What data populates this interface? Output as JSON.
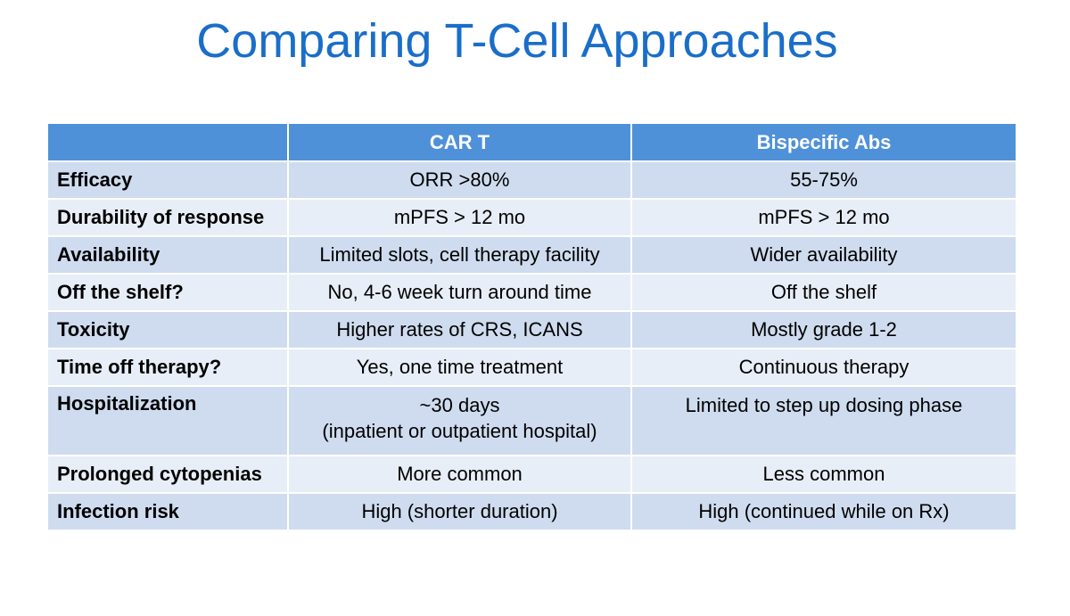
{
  "title": "Comparing T-Cell Approaches",
  "table": {
    "headers": [
      "",
      "CAR T",
      "Bispecific Abs"
    ],
    "rows": [
      {
        "label": "Efficacy",
        "car_t": "ORR  >80%",
        "bispecific": "55-75%"
      },
      {
        "label": "Durability of response",
        "car_t": "mPFS > 12 mo",
        "bispecific": "mPFS > 12 mo"
      },
      {
        "label": "Availability",
        "car_t": "Limited slots, cell therapy facility",
        "bispecific": "Wider availability"
      },
      {
        "label": "Off the shelf?",
        "car_t": "No, 4-6 week turn around time",
        "bispecific": "Off the shelf"
      },
      {
        "label": "Toxicity",
        "car_t": "Higher rates of CRS, ICANS",
        "bispecific": "Mostly grade 1-2"
      },
      {
        "label": "Time off therapy?",
        "car_t": "Yes, one time treatment",
        "bispecific": "Continuous therapy"
      },
      {
        "label": "Hospitalization",
        "car_t_line1": "~30 days",
        "car_t_line2": "(inpatient or outpatient hospital)",
        "bispecific": "Limited to step up dosing phase"
      },
      {
        "label": "Prolonged cytopenias",
        "car_t": "More common",
        "bispecific": "Less common"
      },
      {
        "label": "Infection risk",
        "car_t": "High (shorter duration)",
        "bispecific": "High (continued while on Rx)"
      }
    ]
  },
  "colors": {
    "title": "#1a6ec9",
    "header_bg": "#4f91d9",
    "row_dark": "#cfdcef",
    "row_light": "#e8eef7"
  }
}
